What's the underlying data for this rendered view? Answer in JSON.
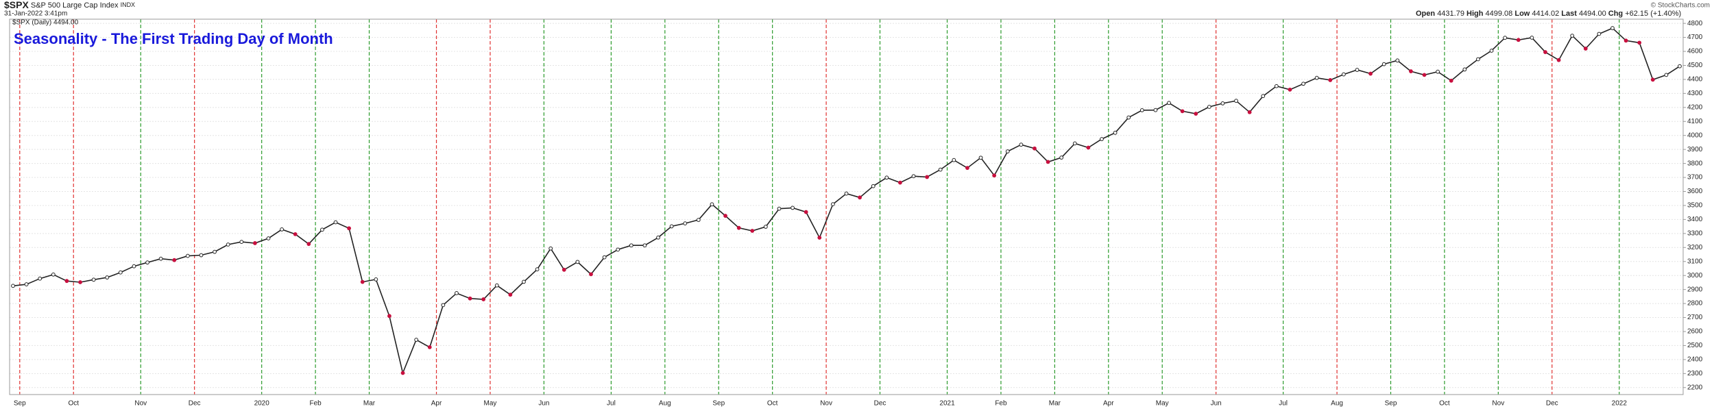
{
  "chart_data": {
    "type": "line",
    "symbol": "$SPX",
    "name": "S&P 500 Large Cap Index",
    "exchange": "INDX",
    "timestamp": "31-Jan-2022 3:41pm",
    "legend_label": "$SPX (Daily) 4494.00",
    "quote": {
      "open_label": "Open",
      "open": "4431.79",
      "high_label": "High",
      "high": "4499.08",
      "low_label": "Low",
      "low": "4414.02",
      "last_label": "Last",
      "last": "4494.00",
      "chg_label": "Chg",
      "chg": "+62.15 (+1.40%)"
    },
    "credit": "© StockCharts.com",
    "title": "Seasonality - The First Trading Day of Month",
    "color": "#222222",
    "grid": true,
    "values": [
      2926,
      2937,
      2978,
      3007,
      2961,
      2952,
      2970,
      2986,
      3022,
      3066,
      3093,
      3120,
      3110,
      3140,
      3145,
      3169,
      3221,
      3240,
      3231,
      3265,
      3329,
      3295,
      3225,
      3327,
      3380,
      3337,
      2954,
      2972,
      2711,
      2304,
      2541,
      2488,
      2789,
      2874,
      2836,
      2830,
      2929,
      2863,
      2955,
      3044,
      3193,
      3041,
      3097,
      3009,
      3130,
      3185,
      3215,
      3215,
      3271,
      3351,
      3372,
      3397,
      3508,
      3426,
      3340,
      3319,
      3348,
      3477,
      3483,
      3453,
      3270,
      3509,
      3585,
      3557,
      3638,
      3699,
      3663,
      3709,
      3703,
      3756,
      3824,
      3768,
      3841,
      3714,
      3886,
      3934,
      3907,
      3811,
      3842,
      3943,
      3913,
      3974,
      4019,
      4128,
      4180,
      4181,
      4232,
      4173,
      4155,
      4204,
      4229,
      4247,
      4166,
      4281,
      4352,
      4327,
      4369,
      4411,
      4395,
      4436,
      4468,
      4441,
      4509,
      4535,
      4458,
      4432,
      4455,
      4391,
      4471,
      4544,
      4605,
      4697,
      4682,
      4698,
      4595,
      4538,
      4712,
      4620,
      4725,
      4766,
      4677,
      4662,
      4398,
      4432,
      4494
    ],
    "xlim": [
      0,
      124
    ],
    "xticks": [
      {
        "value": 0.5,
        "label": "Sep"
      },
      {
        "value": 4.5,
        "label": "Oct"
      },
      {
        "value": 9.5,
        "label": "Nov"
      },
      {
        "value": 13.5,
        "label": "Dec"
      },
      {
        "value": 18.5,
        "label": "2020"
      },
      {
        "value": 22.5,
        "label": "Feb"
      },
      {
        "value": 26.5,
        "label": "Mar"
      },
      {
        "value": 31.5,
        "label": "Apr"
      },
      {
        "value": 35.5,
        "label": "May"
      },
      {
        "value": 39.5,
        "label": "Jun"
      },
      {
        "value": 44.5,
        "label": "Jul"
      },
      {
        "value": 48.5,
        "label": "Aug"
      },
      {
        "value": 52.5,
        "label": "Sep"
      },
      {
        "value": 56.5,
        "label": "Oct"
      },
      {
        "value": 60.5,
        "label": "Nov"
      },
      {
        "value": 64.5,
        "label": "Dec"
      },
      {
        "value": 69.5,
        "label": "2021"
      },
      {
        "value": 73.5,
        "label": "Feb"
      },
      {
        "value": 77.5,
        "label": "Mar"
      },
      {
        "value": 81.5,
        "label": "Apr"
      },
      {
        "value": 85.5,
        "label": "May"
      },
      {
        "value": 89.5,
        "label": "Jun"
      },
      {
        "value": 94.5,
        "label": "Jul"
      },
      {
        "value": 98.5,
        "label": "Aug"
      },
      {
        "value": 102.5,
        "label": "Sep"
      },
      {
        "value": 106.5,
        "label": "Oct"
      },
      {
        "value": 110.5,
        "label": "Nov"
      },
      {
        "value": 114.5,
        "label": "Dec"
      },
      {
        "value": 119.5,
        "label": "2022"
      }
    ],
    "month_line_colors": [
      "#e0302f",
      "#e0302f",
      "#2a9a2a",
      "#e0302f",
      "#2a9a2a",
      "#2a9a2a",
      "#2a9a2a",
      "#e0302f",
      "#e0302f",
      "#2a9a2a",
      "#2a9a2a",
      "#2a9a2a",
      "#2a9a2a",
      "#2a9a2a",
      "#e0302f",
      "#2a9a2a",
      "#2a9a2a",
      "#2a9a2a",
      "#2a9a2a",
      "#2a9a2a",
      "#2a9a2a",
      "#e0302f",
      "#2a9a2a",
      "#e0302f",
      "#2a9a2a",
      "#2a9a2a",
      "#2a9a2a",
      "#e0302f",
      "#2a9a2a"
    ],
    "ylim": [
      2150,
      4830
    ],
    "yticks": [
      2200,
      2300,
      2400,
      2500,
      2600,
      2700,
      2800,
      2900,
      3000,
      3100,
      3200,
      3300,
      3400,
      3500,
      3600,
      3700,
      3800,
      3900,
      4000,
      4100,
      4200,
      4300,
      4400,
      4500,
      4600,
      4700,
      4800
    ]
  }
}
